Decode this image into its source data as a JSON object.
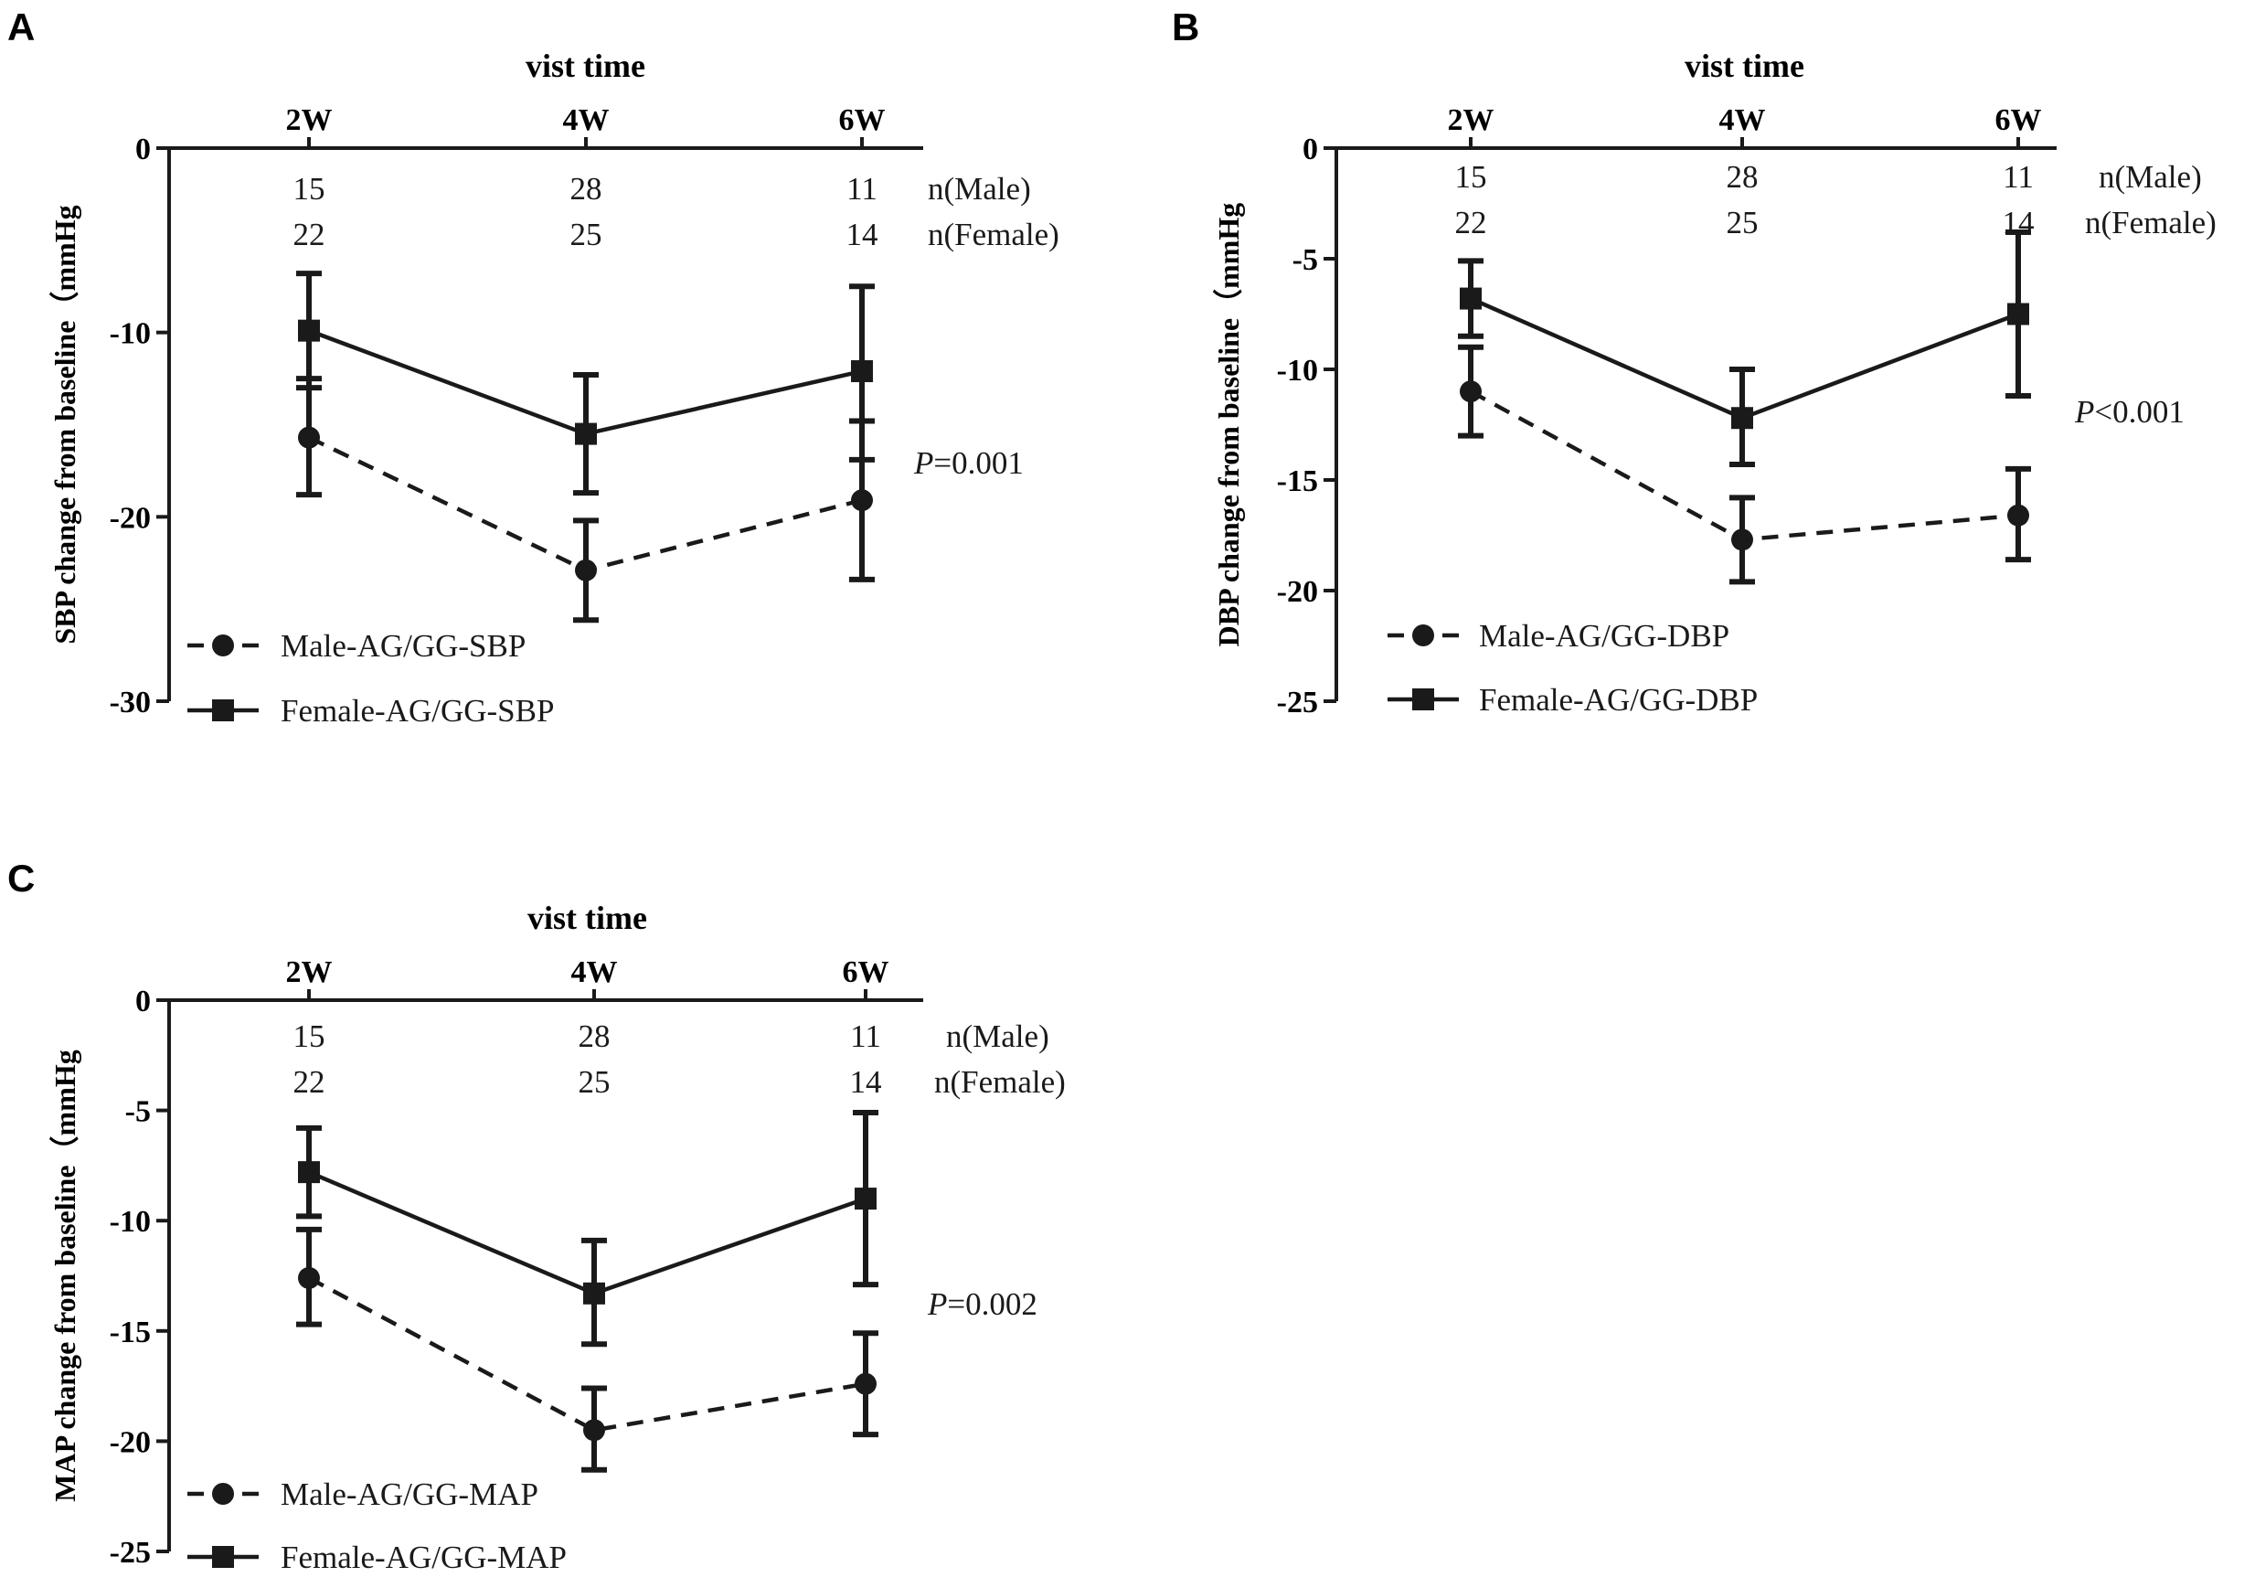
{
  "chart_data": [
    {
      "panel": "A",
      "type": "line",
      "top_axis_title": "vist time",
      "categories": [
        "2W",
        "4W",
        "6W"
      ],
      "ylabel": "SBP change from baseline（mmHg",
      "ylim": [
        -30,
        0
      ],
      "yticks": [
        0,
        -10,
        -20,
        -30
      ],
      "ytick_labels": [
        "0",
        "-10",
        "-20",
        "-30"
      ],
      "n_rows": [
        {
          "label": "n(Male)",
          "values": [
            "15",
            "28",
            "11"
          ]
        },
        {
          "label": "n(Female)",
          "values": [
            "22",
            "25",
            "14"
          ]
        }
      ],
      "p_label": {
        "italic": "P",
        "rest": "=0.001"
      },
      "series": [
        {
          "name": "Male-AG/GG-SBP",
          "marker": "circle",
          "style": "dashed",
          "values": [
            -15.7,
            -22.9,
            -19.1
          ],
          "err_low": [
            -18.8,
            -25.6,
            -23.4
          ],
          "err_high": [
            -12.5,
            -20.2,
            -14.8
          ]
        },
        {
          "name": "Female-AG/GG-SBP",
          "marker": "square",
          "style": "solid",
          "values": [
            -9.9,
            -15.5,
            -12.1
          ],
          "err_low": [
            -13.0,
            -18.7,
            -16.9
          ],
          "err_high": [
            -6.8,
            -12.3,
            -7.5
          ]
        }
      ]
    },
    {
      "panel": "B",
      "type": "line",
      "top_axis_title": "vist time",
      "categories": [
        "2W",
        "4W",
        "6W"
      ],
      "ylabel": "DBP change from baseline（mmHg",
      "ylim": [
        -25,
        0
      ],
      "yticks": [
        0,
        -5,
        -10,
        -15,
        -20,
        -25
      ],
      "ytick_labels": [
        "0",
        "-5",
        "-10",
        "-15",
        "-20",
        "-25"
      ],
      "n_rows": [
        {
          "label": "n(Male)",
          "values": [
            "15",
            "28",
            "11"
          ]
        },
        {
          "label": "n(Female)",
          "values": [
            "22",
            "25",
            "14"
          ]
        }
      ],
      "p_label": {
        "italic": "P",
        "rest": "<0.001"
      },
      "series": [
        {
          "name": "Male-AG/GG-DBP",
          "marker": "circle",
          "style": "dashed",
          "values": [
            -11.0,
            -17.7,
            -16.6
          ],
          "err_low": [
            -13.0,
            -19.6,
            -18.6
          ],
          "err_high": [
            -9.0,
            -15.8,
            -14.5
          ]
        },
        {
          "name": "Female-AG/GG-DBP",
          "marker": "square",
          "style": "solid",
          "values": [
            -6.8,
            -12.2,
            -7.5
          ],
          "err_low": [
            -8.5,
            -14.3,
            -11.2
          ],
          "err_high": [
            -5.1,
            -10.0,
            -3.8
          ]
        }
      ]
    },
    {
      "panel": "C",
      "type": "line",
      "top_axis_title": "vist time",
      "categories": [
        "2W",
        "4W",
        "6W"
      ],
      "ylabel": "MAP change from baseline（mmHg",
      "ylim": [
        -25,
        0
      ],
      "yticks": [
        0,
        -5,
        -10,
        -15,
        -20,
        -25
      ],
      "ytick_labels": [
        "0",
        "-5",
        "-10",
        "-15",
        "-20",
        "-25"
      ],
      "n_rows": [
        {
          "label": "n(Male)",
          "values": [
            "15",
            "28",
            "11"
          ]
        },
        {
          "label": "n(Female)",
          "values": [
            "22",
            "25",
            "14"
          ]
        }
      ],
      "p_label": {
        "italic": "P",
        "rest": "=0.002"
      },
      "series": [
        {
          "name": "Male-AG/GG-MAP",
          "marker": "circle",
          "style": "dashed",
          "values": [
            -12.6,
            -19.5,
            -17.4
          ],
          "err_low": [
            -14.7,
            -21.3,
            -19.7
          ],
          "err_high": [
            -10.4,
            -17.6,
            -15.1
          ]
        },
        {
          "name": "Female-AG/GG-MAP",
          "marker": "square",
          "style": "solid",
          "values": [
            -7.8,
            -13.3,
            -9.0
          ],
          "err_low": [
            -9.8,
            -15.6,
            -12.9
          ],
          "err_high": [
            -5.8,
            -10.9,
            -5.1
          ]
        }
      ]
    }
  ]
}
